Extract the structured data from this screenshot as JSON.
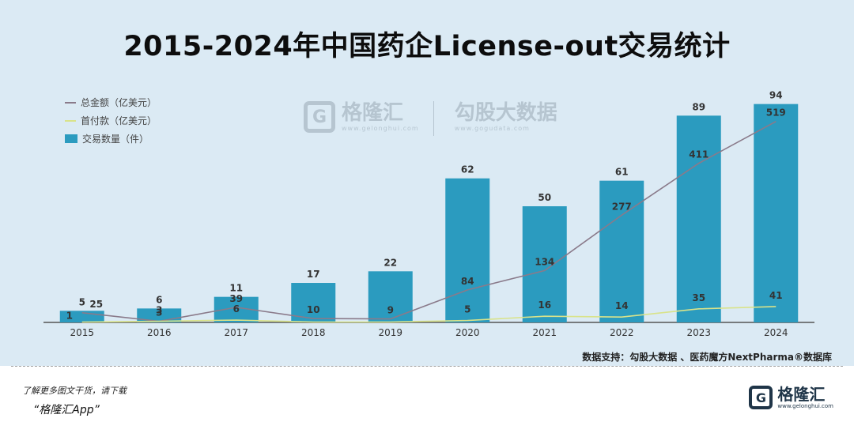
{
  "title": "2015-2024年中国药企License-out交易统计",
  "legend": {
    "total": "总金额（亿美元）",
    "upfront": "首付款（亿美元）",
    "count": "交易数量（件）"
  },
  "watermark": {
    "logo_letter": "G",
    "name": "格隆汇",
    "url": "www.gelonghui.com",
    "partner": "勾股大数据",
    "partner_url": "www.gogudata.com"
  },
  "source": "数据支持：勾股大数据 、医药魔方NextPharma®数据库",
  "footer": {
    "note": "了解更多图文干货，请下载",
    "app": "“格隆汇App”",
    "brand_letter": "G",
    "brand_name": "格隆汇",
    "brand_url": "www.gelonghui.com"
  },
  "colors": {
    "bar": "#2b9bbf",
    "total_line": "#8a7a8a",
    "upfront_line": "#d9e38a"
  },
  "chart_data": {
    "type": "bar",
    "categories": [
      "2015",
      "2016",
      "2017",
      "2018",
      "2019",
      "2020",
      "2021",
      "2022",
      "2023",
      "2024"
    ],
    "series": [
      {
        "name": "交易数量（件）",
        "type": "bar",
        "values": [
          5,
          6,
          11,
          17,
          22,
          62,
          50,
          61,
          89,
          94
        ]
      },
      {
        "name": "总金额（亿美元）",
        "type": "line",
        "values": [
          25,
          3,
          39,
          10,
          9,
          84,
          134,
          277,
          411,
          519
        ]
      },
      {
        "name": "首付款（亿美元）",
        "type": "line",
        "values": [
          1,
          3,
          6,
          null,
          null,
          5,
          16,
          14,
          35,
          41
        ]
      }
    ],
    "bar_ylim": [
      0,
      100
    ],
    "line_ylim": [
      0,
      600
    ],
    "grid": false,
    "legend_position": "top-left"
  }
}
